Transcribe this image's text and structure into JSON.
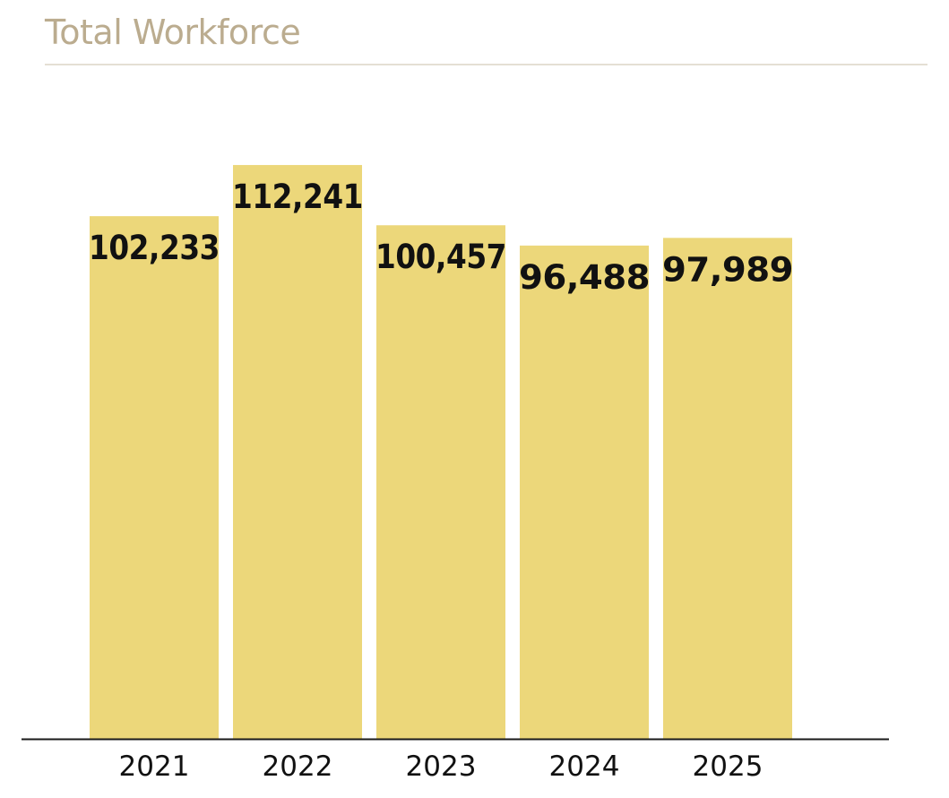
{
  "chart_data": {
    "type": "bar",
    "title": "Total Workforce",
    "categories": [
      "2021",
      "2022",
      "2023",
      "2024",
      "2025"
    ],
    "values": [
      102233,
      112241,
      100457,
      96488,
      97989
    ],
    "value_labels": [
      "102,233",
      "112,241",
      "100,457",
      "96,488",
      "97,989"
    ],
    "xlabel": "",
    "ylabel": "",
    "ylim": [
      0,
      130000
    ],
    "grid": false,
    "legend": "none"
  },
  "colors": {
    "bar": "#ECD77A",
    "title": "#BBAC8F",
    "rule": "#E4DFD4",
    "axis": "#1a1a1a",
    "label": "#111111"
  }
}
